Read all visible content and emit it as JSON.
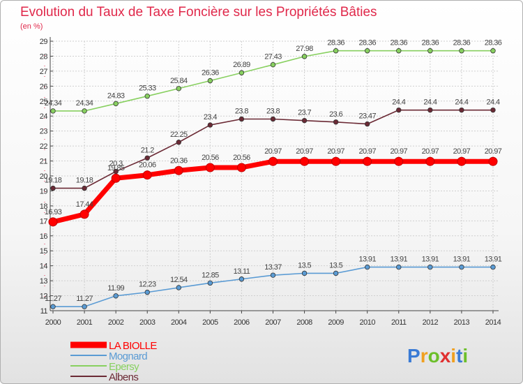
{
  "chart_data": {
    "type": "line",
    "title": "Evolution du Taux de Taxe Foncière sur les Propriétés Bâties",
    "subtitle": "(en %)",
    "xlabel": "",
    "ylabel": "",
    "ylim": [
      11,
      29
    ],
    "grid": true,
    "x": [
      "2000",
      "2001",
      "2002",
      "2003",
      "2004",
      "2005",
      "2006",
      "2007",
      "2008",
      "2009",
      "2010",
      "2011",
      "2012",
      "2013",
      "2014"
    ],
    "yticks": [
      "11",
      "12",
      "13",
      "14",
      "15",
      "16",
      "17",
      "18",
      "19",
      "20",
      "21",
      "22",
      "23",
      "24",
      "25",
      "26",
      "27",
      "28",
      "29"
    ],
    "series": [
      {
        "name": "LA BIOLLE",
        "color": "#ff0000",
        "values": [
          16.93,
          17.44,
          19.85,
          20.06,
          20.36,
          20.56,
          20.56,
          20.97,
          20.97,
          20.97,
          20.97,
          20.97,
          20.97,
          20.97,
          20.97
        ],
        "labels": [
          "16.93",
          "17.44",
          "19.85",
          "20.06",
          "20.36",
          "20.56",
          "20.56",
          "20.97",
          "20.97",
          "20.97",
          "20.97",
          "20.97",
          "20.97",
          "20.97",
          "20.97"
        ]
      },
      {
        "name": "Mognard",
        "color": "#5a9bd4",
        "values": [
          11.27,
          11.27,
          11.99,
          12.23,
          12.54,
          12.85,
          13.11,
          13.37,
          13.5,
          13.5,
          13.91,
          13.91,
          13.91,
          13.91,
          13.91
        ],
        "labels": [
          "11.27",
          "11.27",
          "11.99",
          "12.23",
          "12.54",
          "12.85",
          "13.11",
          "13.37",
          "13.5",
          "13.5",
          "13.91",
          "13.91",
          "13.91",
          "13.91",
          "13.91"
        ]
      },
      {
        "name": "Epersy",
        "color": "#88d060",
        "values": [
          24.34,
          24.34,
          24.83,
          25.33,
          25.84,
          26.36,
          26.89,
          27.43,
          27.98,
          28.36,
          28.36,
          28.36,
          28.36,
          28.36,
          28.36
        ],
        "labels": [
          "24.34",
          "24.34",
          "24.83",
          "25.33",
          "25.84",
          "26.36",
          "26.89",
          "27.43",
          "27.98",
          "28.36",
          "28.36",
          "28.36",
          "28.36",
          "28.36",
          "28.36"
        ]
      },
      {
        "name": "Albens",
        "color": "#6b2a35",
        "values": [
          19.18,
          19.18,
          20.3,
          21.2,
          22.25,
          23.4,
          23.8,
          23.8,
          23.7,
          23.6,
          23.47,
          24.4,
          24.4,
          24.4,
          24.4
        ],
        "labels": [
          "19.18",
          "19.18",
          "20.3",
          "21.2",
          "22.25",
          "23.4",
          "23.8",
          "23.8",
          "23.7",
          "23.6",
          "23.47",
          "24.4",
          "24.4",
          "24.4",
          "24.4"
        ]
      }
    ],
    "legend": "bottom-left"
  },
  "logo": {
    "text": "Proxiti"
  }
}
